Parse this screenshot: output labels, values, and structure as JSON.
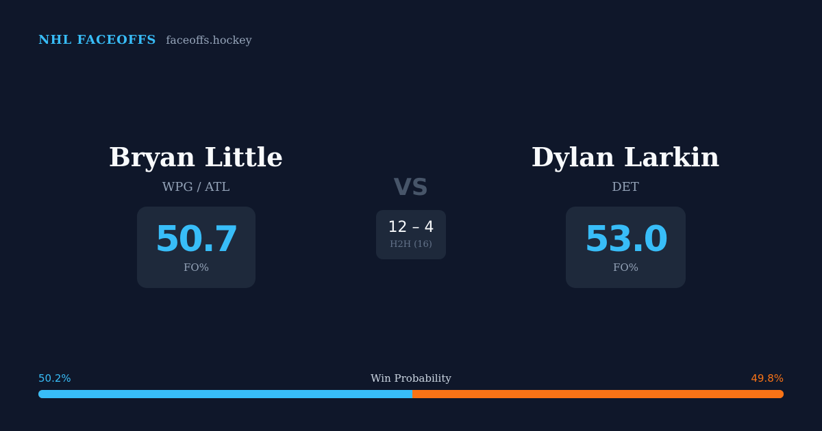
{
  "header": {
    "brand": "NHL FACEOFFS",
    "site": "faceoffs.hockey"
  },
  "colors": {
    "background": "#0f172a",
    "card": "#1e293b",
    "accent_blue": "#38bdf8",
    "accent_orange": "#f97316",
    "muted_text": "#94a3b8"
  },
  "players": {
    "left": {
      "name": "Bryan Little",
      "team": "WPG / ATL",
      "fo_pct": "50.7",
      "fo_label": "FO%"
    },
    "right": {
      "name": "Dylan Larkin",
      "team": "DET",
      "fo_pct": "53.0",
      "fo_label": "FO%"
    }
  },
  "vs_label": "VS",
  "h2h": {
    "score": "12 – 4",
    "label": "H2H (16)"
  },
  "win_probability": {
    "title": "Win Probability",
    "left_label": "50.2%",
    "right_label": "49.8%",
    "left_value": 50.2,
    "right_value": 49.8
  }
}
